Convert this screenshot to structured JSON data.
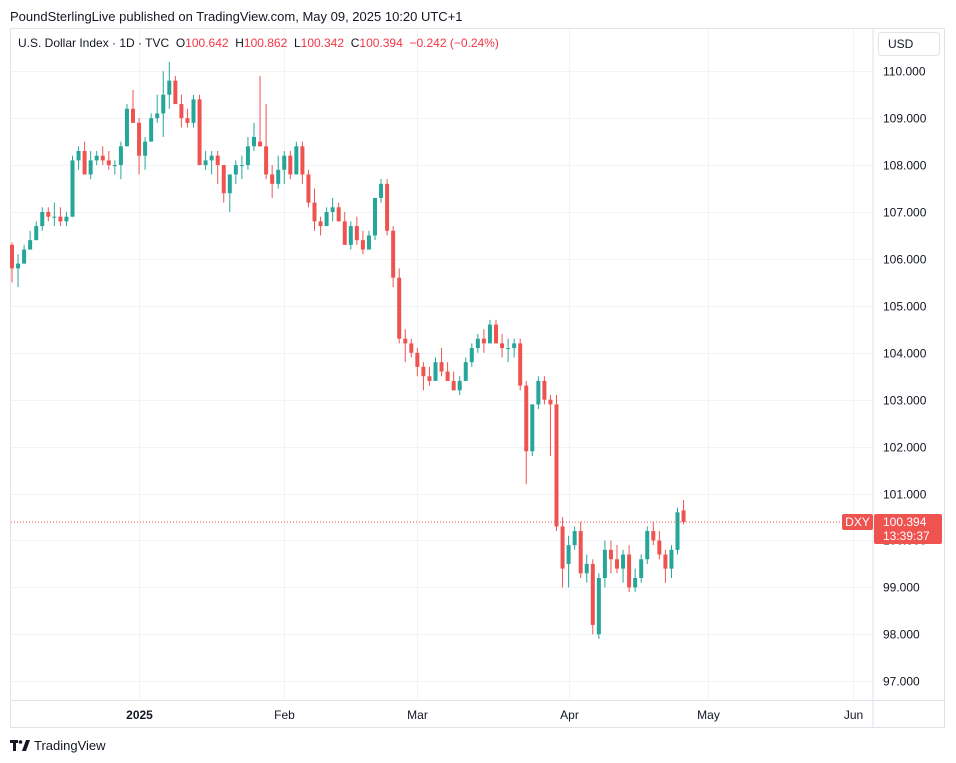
{
  "header": {
    "attribution": "PoundSterlingLive published on TradingView.com, May 09, 2025 10:20 UTC+1"
  },
  "legend": {
    "symbol": "U.S. Dollar Index · 1D · TVC",
    "open_label": "O",
    "open": "100.642",
    "high_label": "H",
    "high": "100.862",
    "low_label": "L",
    "low": "100.342",
    "close_label": "C",
    "close": "100.394",
    "change": "−0.242 (−0.24%)"
  },
  "currency": "USD",
  "price_tag": {
    "ticker": "DXY",
    "price": "100.394",
    "countdown": "13:39:37"
  },
  "footer": {
    "brand": "TradingView"
  },
  "colors": {
    "up": "#26a69a",
    "down": "#ef5350",
    "grid": "#f0f3fa",
    "text": "#131722"
  },
  "chart_data": {
    "type": "candlestick",
    "title": "U.S. Dollar Index",
    "ylim": [
      96.6,
      110.9
    ],
    "y_ticks": [
      "97.000",
      "98.000",
      "99.000",
      "100.000",
      "101.000",
      "102.000",
      "103.000",
      "104.000",
      "105.000",
      "106.000",
      "107.000",
      "108.000",
      "109.000",
      "110.000"
    ],
    "x_ticks": [
      {
        "label": "2025",
        "index": 21,
        "bold": true
      },
      {
        "label": "Feb",
        "index": 45
      },
      {
        "label": "Mar",
        "index": 67
      },
      {
        "label": "Apr",
        "index": 92
      },
      {
        "label": "May",
        "index": 115
      },
      {
        "label": "Jun",
        "index": 139
      }
    ],
    "last_price": 100.394,
    "candles": [
      [
        106.3,
        106.35,
        105.5,
        105.8
      ],
      [
        105.8,
        106.1,
        105.4,
        105.9
      ],
      [
        105.9,
        106.3,
        105.9,
        106.2
      ],
      [
        106.2,
        106.6,
        106.2,
        106.4
      ],
      [
        106.4,
        106.8,
        106.4,
        106.7
      ],
      [
        106.7,
        107.1,
        106.6,
        107.0
      ],
      [
        107.0,
        107.1,
        106.8,
        106.9
      ],
      [
        106.9,
        107.2,
        106.7,
        106.9
      ],
      [
        106.9,
        107.1,
        106.7,
        106.8
      ],
      [
        106.8,
        107.0,
        106.7,
        106.9
      ],
      [
        106.9,
        108.2,
        106.9,
        108.1
      ],
      [
        108.1,
        108.4,
        107.9,
        108.3
      ],
      [
        108.3,
        108.5,
        107.8,
        107.8
      ],
      [
        107.8,
        108.3,
        107.7,
        108.1
      ],
      [
        108.1,
        108.3,
        108.0,
        108.2
      ],
      [
        108.2,
        108.4,
        108.0,
        108.1
      ],
      [
        108.1,
        108.3,
        107.9,
        108.0
      ],
      [
        108.0,
        108.1,
        107.8,
        108.0
      ],
      [
        108.0,
        108.5,
        107.7,
        108.4
      ],
      [
        108.4,
        109.3,
        108.4,
        109.2
      ],
      [
        109.2,
        109.6,
        108.9,
        108.9
      ],
      [
        108.9,
        109.0,
        107.8,
        108.2
      ],
      [
        108.2,
        108.6,
        107.9,
        108.5
      ],
      [
        108.5,
        109.1,
        108.5,
        109.0
      ],
      [
        109.0,
        109.5,
        108.9,
        109.1
      ],
      [
        109.1,
        110.0,
        108.6,
        109.5
      ],
      [
        109.5,
        110.2,
        109.2,
        109.8
      ],
      [
        109.8,
        109.9,
        109.3,
        109.3
      ],
      [
        109.3,
        109.5,
        108.8,
        109.0
      ],
      [
        109.0,
        109.2,
        108.8,
        108.9
      ],
      [
        108.9,
        109.5,
        108.8,
        109.4
      ],
      [
        109.4,
        109.5,
        108.0,
        108.0
      ],
      [
        108.0,
        108.3,
        107.9,
        108.1
      ],
      [
        108.1,
        108.3,
        107.8,
        108.2
      ],
      [
        108.2,
        108.3,
        107.6,
        108.0
      ],
      [
        108.0,
        108.0,
        107.2,
        107.4
      ],
      [
        107.4,
        107.8,
        107.0,
        107.8
      ],
      [
        107.8,
        108.1,
        107.6,
        108.0
      ],
      [
        108.0,
        108.2,
        107.7,
        108.0
      ],
      [
        108.0,
        108.6,
        107.9,
        108.4
      ],
      [
        108.4,
        108.9,
        108.3,
        108.6
      ],
      [
        108.5,
        109.9,
        108.4,
        108.4
      ],
      [
        108.4,
        109.3,
        107.7,
        107.8
      ],
      [
        107.8,
        108.0,
        107.3,
        107.6
      ],
      [
        107.6,
        108.2,
        107.5,
        107.9
      ],
      [
        107.9,
        108.3,
        107.6,
        108.2
      ],
      [
        108.2,
        108.3,
        107.7,
        107.8
      ],
      [
        107.8,
        108.5,
        107.8,
        108.4
      ],
      [
        108.4,
        108.5,
        107.6,
        107.8
      ],
      [
        107.8,
        107.9,
        107.1,
        107.2
      ],
      [
        107.2,
        107.5,
        106.6,
        106.8
      ],
      [
        106.8,
        106.9,
        106.5,
        106.7
      ],
      [
        106.7,
        107.1,
        106.7,
        107.0
      ],
      [
        107.0,
        107.3,
        106.8,
        107.1
      ],
      [
        107.1,
        107.2,
        106.8,
        106.8
      ],
      [
        106.8,
        107.0,
        106.3,
        106.3
      ],
      [
        106.3,
        106.8,
        106.2,
        106.7
      ],
      [
        106.7,
        106.9,
        106.3,
        106.4
      ],
      [
        106.4,
        106.6,
        106.1,
        106.2
      ],
      [
        106.2,
        106.6,
        106.2,
        106.5
      ],
      [
        106.5,
        107.3,
        106.4,
        107.3
      ],
      [
        107.3,
        107.7,
        107.2,
        107.6
      ],
      [
        107.6,
        107.7,
        106.5,
        106.6
      ],
      [
        106.6,
        106.7,
        105.4,
        105.6
      ],
      [
        105.6,
        105.8,
        104.2,
        104.3
      ],
      [
        104.3,
        104.5,
        103.8,
        104.2
      ],
      [
        104.2,
        104.3,
        103.9,
        104.0
      ],
      [
        104.0,
        104.1,
        103.5,
        103.7
      ],
      [
        103.7,
        103.8,
        103.2,
        103.5
      ],
      [
        103.5,
        103.7,
        103.3,
        103.4
      ],
      [
        103.4,
        103.9,
        103.4,
        103.8
      ],
      [
        103.8,
        104.1,
        103.5,
        103.6
      ],
      [
        103.6,
        103.8,
        103.4,
        103.4
      ],
      [
        103.4,
        103.6,
        103.2,
        103.2
      ],
      [
        103.2,
        103.5,
        103.1,
        103.4
      ],
      [
        103.4,
        103.9,
        103.4,
        103.8
      ],
      [
        103.8,
        104.2,
        103.7,
        104.1
      ],
      [
        104.1,
        104.4,
        104.0,
        104.3
      ],
      [
        104.3,
        104.5,
        104.0,
        104.2
      ],
      [
        104.2,
        104.7,
        104.2,
        104.6
      ],
      [
        104.6,
        104.7,
        104.2,
        104.2
      ],
      [
        104.2,
        104.4,
        103.9,
        104.1
      ],
      [
        104.1,
        104.3,
        103.8,
        104.1
      ],
      [
        104.1,
        104.3,
        103.9,
        104.2
      ],
      [
        104.2,
        104.3,
        103.2,
        103.3
      ],
      [
        103.3,
        103.4,
        101.2,
        101.9
      ],
      [
        101.9,
        102.9,
        101.8,
        102.9
      ],
      [
        102.9,
        103.5,
        102.8,
        103.4
      ],
      [
        103.4,
        103.5,
        102.9,
        103.0
      ],
      [
        103.0,
        103.1,
        101.8,
        102.9
      ],
      [
        102.9,
        103.1,
        100.2,
        100.3
      ],
      [
        100.3,
        100.5,
        99.0,
        99.4
      ],
      [
        99.5,
        100.1,
        99.0,
        99.9
      ],
      [
        99.9,
        100.3,
        99.8,
        100.2
      ],
      [
        100.2,
        100.4,
        99.2,
        99.3
      ],
      [
        99.3,
        99.7,
        99.1,
        99.5
      ],
      [
        99.5,
        99.6,
        98.0,
        98.2
      ],
      [
        98.0,
        99.3,
        97.9,
        99.2
      ],
      [
        99.2,
        100.0,
        99.0,
        99.8
      ],
      [
        99.8,
        100.0,
        99.3,
        99.6
      ],
      [
        99.6,
        99.9,
        99.3,
        99.4
      ],
      [
        99.4,
        99.8,
        99.1,
        99.7
      ],
      [
        99.7,
        99.9,
        98.9,
        99.0
      ],
      [
        99.0,
        99.4,
        98.9,
        99.2
      ],
      [
        99.2,
        99.7,
        99.1,
        99.6
      ],
      [
        99.6,
        100.3,
        99.5,
        100.2
      ],
      [
        100.2,
        100.4,
        99.9,
        100.0
      ],
      [
        100.0,
        100.2,
        99.6,
        99.7
      ],
      [
        99.7,
        99.8,
        99.1,
        99.4
      ],
      [
        99.4,
        99.9,
        99.2,
        99.8
      ],
      [
        99.8,
        100.7,
        99.7,
        100.6
      ],
      [
        100.642,
        100.862,
        100.342,
        100.394
      ]
    ]
  }
}
